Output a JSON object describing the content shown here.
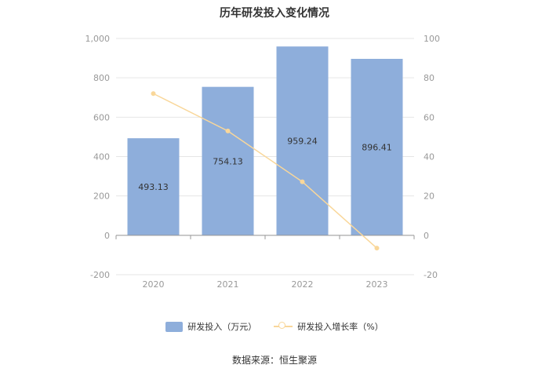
{
  "title": "历年研发投入变化情况",
  "source": "数据来源：恒生聚源",
  "colors": {
    "bar": "#8eaedb",
    "line": "#f9d79a",
    "axis_text": "#999999",
    "grid": "#e6e6e6"
  },
  "chart_data": {
    "type": "bar",
    "categories": [
      "2020",
      "2021",
      "2022",
      "2023"
    ],
    "series": [
      {
        "name": "研发投入（万元）",
        "type": "bar",
        "axis": "left",
        "values": [
          493.13,
          754.13,
          959.24,
          896.41
        ],
        "labels": [
          "493.13",
          "754.13",
          "959.24",
          "896.41"
        ]
      },
      {
        "name": "研发投入增长率（%）",
        "type": "line",
        "axis": "right",
        "values": [
          72,
          53,
          27.2,
          -6.5
        ]
      }
    ],
    "y_left": {
      "min": -200,
      "max": 1000,
      "ticks": [
        "-200",
        "0",
        "200",
        "400",
        "600",
        "800",
        "1,000"
      ]
    },
    "y_right": {
      "min": -20,
      "max": 100,
      "ticks": [
        "-20",
        "0",
        "20",
        "40",
        "60",
        "80",
        "100"
      ]
    },
    "grid": true,
    "legend_position": "bottom"
  }
}
